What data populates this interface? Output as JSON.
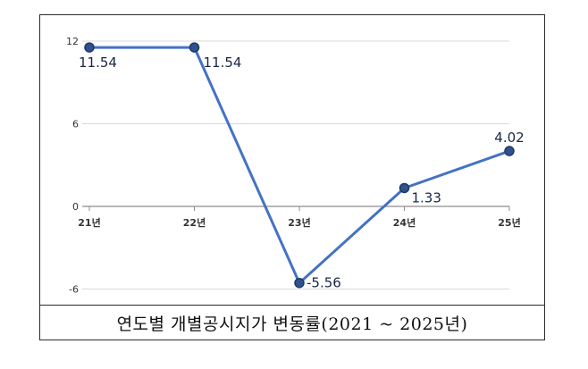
{
  "chart_data": {
    "type": "line",
    "title": "연도별 개별공시지가 변동률(2021 ~ 2025년)",
    "categories": [
      "21년",
      "22년",
      "23년",
      "24년",
      "25년"
    ],
    "series": [
      {
        "values": [
          11.54,
          11.54,
          -5.56,
          1.33,
          4.02
        ]
      }
    ],
    "data_labels": [
      "11.54",
      "11.54",
      "-5.56",
      "1.33",
      "4.02"
    ],
    "y_ticks": [
      "12",
      "6",
      "0",
      "-6"
    ],
    "ylim": [
      -6,
      12
    ],
    "grid": true,
    "legend": "none",
    "line_color": "#4472c4",
    "marker_color": "#2f528f"
  }
}
